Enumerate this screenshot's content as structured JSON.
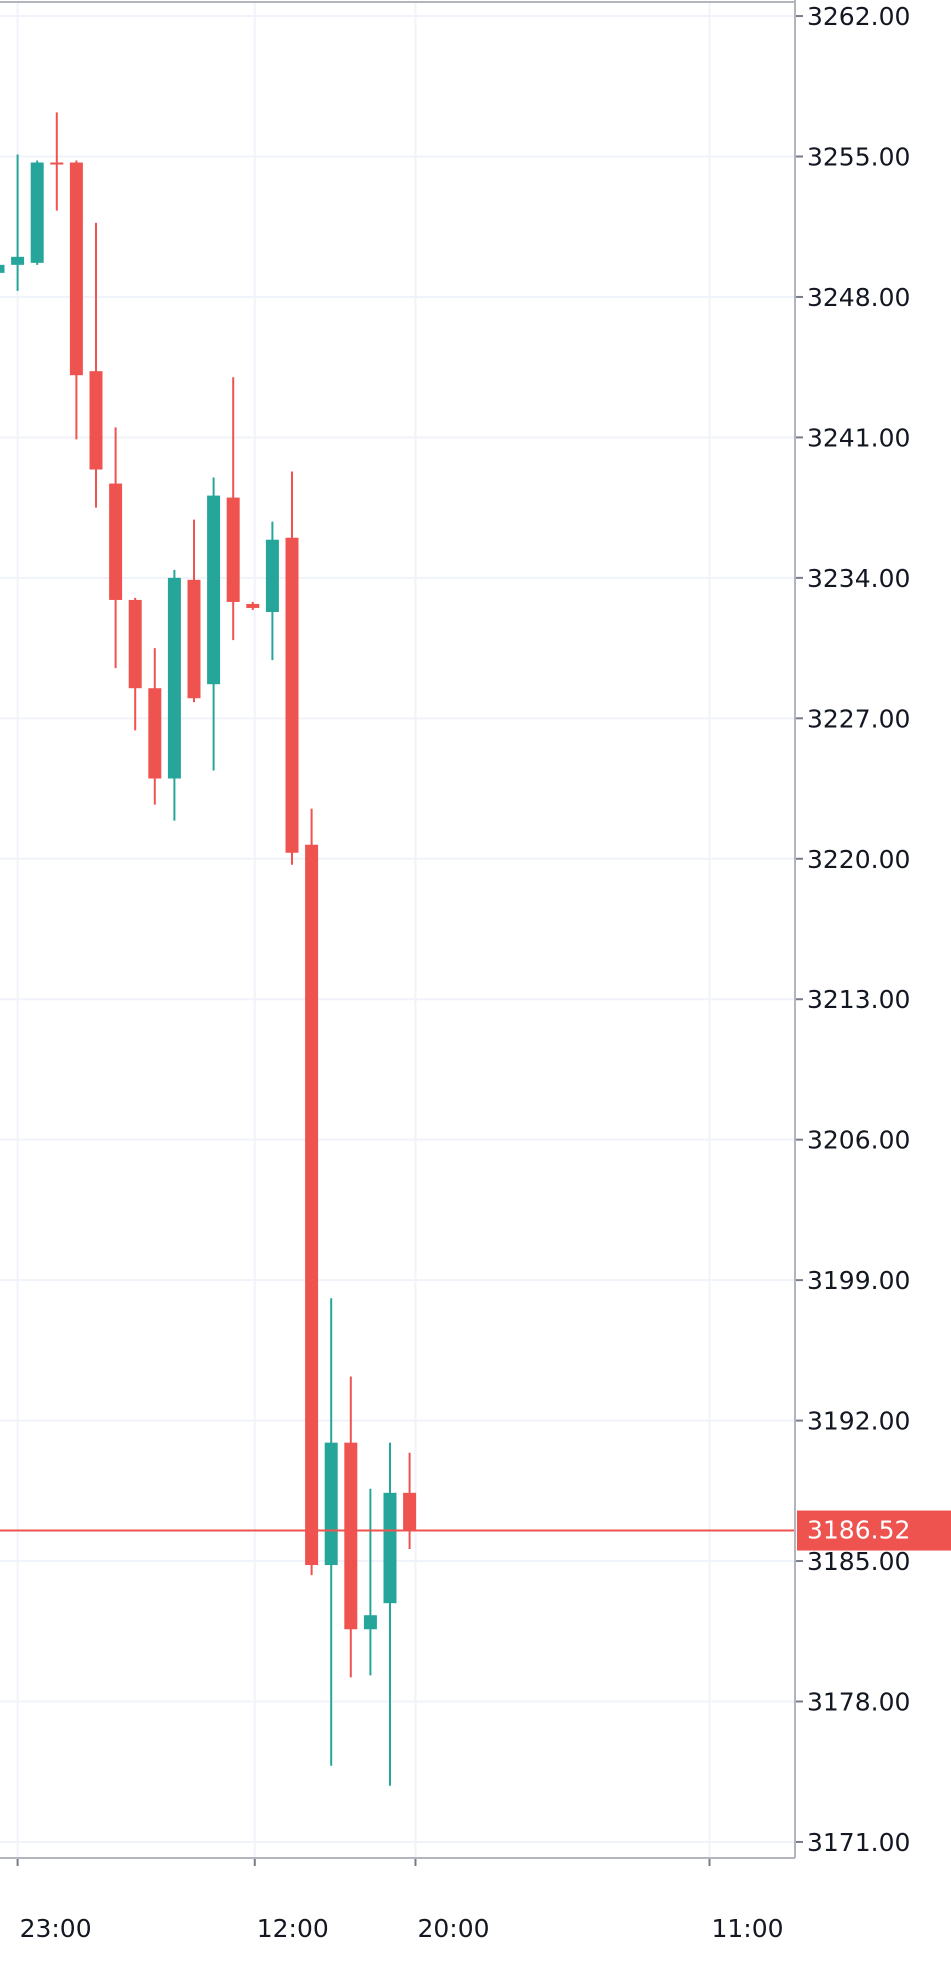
{
  "chart_data": {
    "type": "candlestick",
    "up_color": "#26a69a",
    "down_color": "#ef5350",
    "grid": true,
    "open": [
      3249.2,
      3249.6,
      3249.7,
      3254.7,
      3254.7,
      3244.3,
      3238.7,
      3232.9,
      3228.5,
      3224.0,
      3233.9,
      3228.7,
      3238.0,
      3232.7,
      3232.3,
      3236.0,
      3220.7,
      3184.8,
      3190.9,
      3181.6,
      3182.9,
      3188.4
    ],
    "high": [
      3249.7,
      3255.1,
      3254.8,
      3257.2,
      3254.8,
      3251.7,
      3241.5,
      3233.0,
      3230.5,
      3234.4,
      3236.9,
      3239.0,
      3244.0,
      3232.8,
      3236.8,
      3239.3,
      3222.5,
      3198.1,
      3194.2,
      3188.6,
      3190.9,
      3190.4
    ],
    "low": [
      3249.1,
      3248.3,
      3249.6,
      3252.3,
      3240.9,
      3237.5,
      3229.5,
      3226.4,
      3222.7,
      3221.9,
      3227.8,
      3224.4,
      3230.9,
      3232.4,
      3229.9,
      3219.7,
      3184.3,
      3174.8,
      3179.2,
      3179.3,
      3173.8,
      3185.6
    ],
    "close": [
      3249.6,
      3250.0,
      3254.7,
      3254.6,
      3244.1,
      3239.4,
      3232.9,
      3228.5,
      3224.0,
      3234.0,
      3228.0,
      3238.1,
      3232.8,
      3232.5,
      3235.9,
      3220.3,
      3184.8,
      3190.9,
      3181.6,
      3182.3,
      3188.4,
      3186.52
    ],
    "last_price": 3186.52,
    "ylim": [
      3170.2,
      3262.7
    ],
    "yticks": [
      {
        "value": 3262,
        "label": "3262.00"
      },
      {
        "value": 3255,
        "label": "3255.00"
      },
      {
        "value": 3248,
        "label": "3248.00"
      },
      {
        "value": 3241,
        "label": "3241.00"
      },
      {
        "value": 3234,
        "label": "3234.00"
      },
      {
        "value": 3227,
        "label": "3227.00"
      },
      {
        "value": 3220,
        "label": "3220.00"
      },
      {
        "value": 3213,
        "label": "3213.00"
      },
      {
        "value": 3206,
        "label": "3206.00"
      },
      {
        "value": 3199,
        "label": "3199.00"
      },
      {
        "value": 3192,
        "label": "3192.00"
      },
      {
        "value": 3185,
        "label": "3185.00"
      },
      {
        "value": 3178,
        "label": "3178.00"
      },
      {
        "value": 3171,
        "label": "3171.00"
      }
    ],
    "x_tick_labels": [
      "23:00",
      "12:00",
      "20:00",
      "11:00"
    ]
  }
}
